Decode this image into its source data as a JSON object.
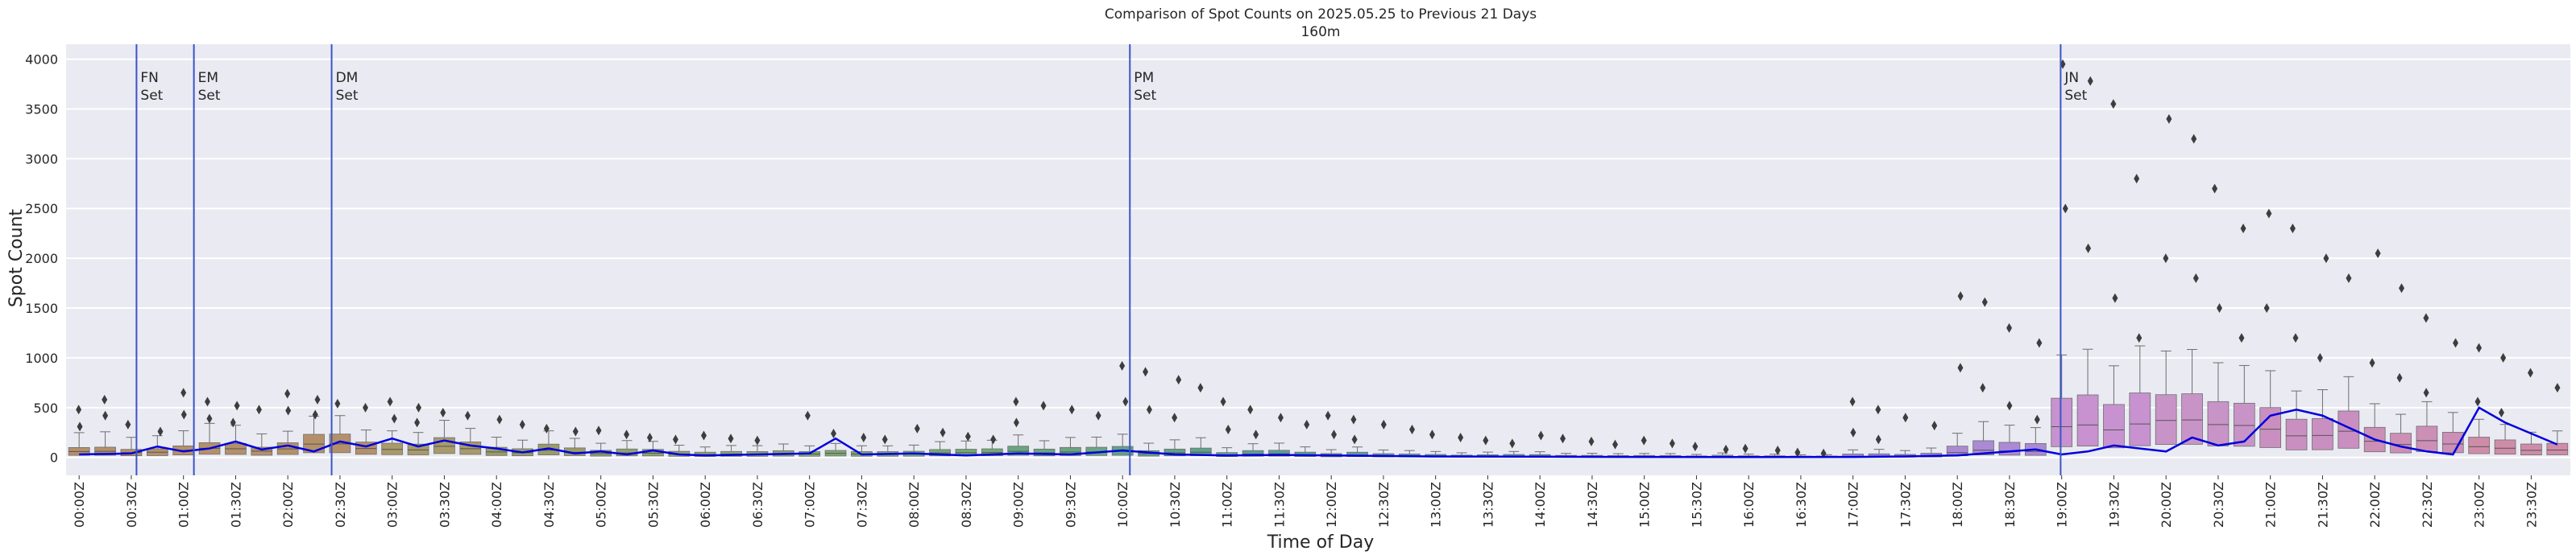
{
  "chart_data": {
    "type": "box",
    "title": "Comparison of Spot Counts on 2025.05.25 to Previous 21 Days",
    "subtitle": "160m",
    "xlabel": "Time of Day",
    "ylabel": "Spot Count",
    "ylim": [
      -180,
      4150
    ],
    "yticks": [
      0,
      500,
      1000,
      1500,
      2000,
      2500,
      3000,
      3500,
      4000
    ],
    "grid": true,
    "background": "#eaeaf2",
    "slots_per_hour": 4,
    "x_tick_labels": [
      "00:00Z",
      "00:30Z",
      "01:00Z",
      "01:30Z",
      "02:00Z",
      "02:30Z",
      "03:00Z",
      "03:30Z",
      "04:00Z",
      "04:30Z",
      "05:00Z",
      "05:30Z",
      "06:00Z",
      "06:30Z",
      "07:00Z",
      "07:30Z",
      "08:00Z",
      "08:30Z",
      "09:00Z",
      "09:30Z",
      "10:00Z",
      "10:30Z",
      "11:00Z",
      "11:30Z",
      "12:00Z",
      "12:30Z",
      "13:00Z",
      "13:30Z",
      "14:00Z",
      "14:30Z",
      "15:00Z",
      "15:30Z",
      "16:00Z",
      "16:30Z",
      "17:00Z",
      "17:30Z",
      "18:00Z",
      "18:30Z",
      "19:00Z",
      "19:30Z",
      "20:00Z",
      "20:30Z",
      "21:00Z",
      "21:30Z",
      "22:00Z",
      "22:30Z",
      "23:00Z",
      "23:30Z"
    ],
    "vertical_markers": [
      {
        "time": 0.55,
        "lines": [
          "FN",
          "Set"
        ]
      },
      {
        "time": 1.1,
        "lines": [
          "EM",
          "Set"
        ]
      },
      {
        "time": 2.42,
        "lines": [
          "DM",
          "Set"
        ]
      },
      {
        "time": 10.07,
        "lines": [
          "PM",
          "Set"
        ]
      },
      {
        "time": 18.99,
        "lines": [
          "JN",
          "Set"
        ]
      }
    ],
    "box_stats_by_hour": [
      {
        "hour": 0,
        "median": 60,
        "q3": 100,
        "whisker": 250,
        "outliers": [
          480,
          420,
          330,
          260,
          310,
          580
        ]
      },
      {
        "hour": 1,
        "median": 80,
        "q3": 130,
        "whisker": 300,
        "outliers": [
          650,
          560,
          520,
          480,
          430,
          390,
          350
        ]
      },
      {
        "hour": 2,
        "median": 110,
        "q3": 190,
        "whisker": 340,
        "outliers": [
          640,
          580,
          540,
          500,
          470,
          430
        ]
      },
      {
        "hour": 3,
        "median": 90,
        "q3": 160,
        "whisker": 300,
        "outliers": [
          560,
          500,
          450,
          420,
          390,
          350
        ]
      },
      {
        "hour": 4,
        "median": 60,
        "q3": 110,
        "whisker": 220,
        "outliers": [
          380,
          330,
          290,
          260
        ]
      },
      {
        "hour": 5,
        "median": 40,
        "q3": 75,
        "whisker": 150,
        "outliers": [
          270,
          230,
          200,
          180
        ]
      },
      {
        "hour": 6,
        "median": 30,
        "q3": 55,
        "whisker": 110,
        "outliers": [
          220,
          190,
          170
        ]
      },
      {
        "hour": 7,
        "median": 35,
        "q3": 60,
        "whisker": 120,
        "outliers": [
          420,
          240,
          200,
          180
        ]
      },
      {
        "hour": 8,
        "median": 40,
        "q3": 70,
        "whisker": 140,
        "outliers": [
          290,
          250,
          210,
          180
        ]
      },
      {
        "hour": 9,
        "median": 60,
        "q3": 110,
        "whisker": 220,
        "outliers": [
          560,
          520,
          480,
          420,
          350
        ]
      },
      {
        "hour": 10,
        "median": 50,
        "q3": 90,
        "whisker": 190,
        "outliers": [
          920,
          860,
          780,
          700,
          560,
          480,
          400
        ]
      },
      {
        "hour": 11,
        "median": 30,
        "q3": 60,
        "whisker": 120,
        "outliers": [
          560,
          480,
          400,
          330,
          280,
          230
        ]
      },
      {
        "hour": 12,
        "median": 20,
        "q3": 45,
        "whisker": 90,
        "outliers": [
          420,
          380,
          330,
          280,
          230,
          180
        ]
      },
      {
        "hour": 13,
        "median": 12,
        "q3": 30,
        "whisker": 60,
        "outliers": [
          230,
          200,
          170,
          140
        ]
      },
      {
        "hour": 14,
        "median": 10,
        "q3": 25,
        "whisker": 50,
        "outliers": [
          220,
          190,
          160,
          130
        ]
      },
      {
        "hour": 15,
        "median": 8,
        "q3": 20,
        "whisker": 40,
        "outliers": [
          170,
          140,
          110,
          80
        ]
      },
      {
        "hour": 16,
        "median": 6,
        "q3": 15,
        "whisker": 30,
        "outliers": [
          90,
          70,
          50,
          40
        ]
      },
      {
        "hour": 17,
        "median": 12,
        "q3": 40,
        "whisker": 90,
        "outliers": [
          560,
          480,
          400,
          320,
          250,
          180
        ]
      },
      {
        "hour": 18,
        "median": 60,
        "q3": 140,
        "whisker": 300,
        "outliers": [
          1620,
          1560,
          1300,
          1150,
          900,
          700,
          520,
          380
        ]
      },
      {
        "hour": 19,
        "median": 270,
        "q3": 520,
        "whisker": 900,
        "outliers": [
          3950,
          3780,
          3550,
          2800,
          2500,
          2100,
          1600,
          1200
        ]
      },
      {
        "hour": 20,
        "median": 330,
        "q3": 560,
        "whisker": 950,
        "outliers": [
          3400,
          3200,
          2700,
          2300,
          2000,
          1800,
          1500,
          1200
        ]
      },
      {
        "hour": 21,
        "median": 260,
        "q3": 460,
        "whisker": 800,
        "outliers": [
          2450,
          2300,
          2000,
          1800,
          1500,
          1200,
          1000
        ]
      },
      {
        "hour": 22,
        "median": 150,
        "q3": 280,
        "whisker": 500,
        "outliers": [
          2050,
          1700,
          1400,
          1150,
          950,
          800,
          650
        ]
      },
      {
        "hour": 23,
        "median": 90,
        "q3": 170,
        "whisker": 320,
        "outliers": [
          1100,
          1000,
          850,
          700,
          560,
          450
        ]
      }
    ],
    "box_colors_by_hour": [
      "#b4906a",
      "#b4906a",
      "#b4906a",
      "#a89a6a",
      "#9a9c68",
      "#8fa16c",
      "#8ba470",
      "#7ea872",
      "#74a978",
      "#67a67f",
      "#5fa38a",
      "#5c9f96",
      "#5e9aa3",
      "#6596b0",
      "#6f92bc",
      "#7c8fc6",
      "#8a8ccd",
      "#9a8ad2",
      "#ab8ad4",
      "#c792cf",
      "#c894c8",
      "#c98fc0",
      "#cc8fb6",
      "#cf8ca8"
    ],
    "current_day_series": {
      "color": "#0000dd",
      "points": [
        [
          0.0,
          30
        ],
        [
          0.5,
          40
        ],
        [
          0.75,
          110
        ],
        [
          1.0,
          60
        ],
        [
          1.25,
          90
        ],
        [
          1.5,
          160
        ],
        [
          1.75,
          80
        ],
        [
          2.0,
          120
        ],
        [
          2.25,
          60
        ],
        [
          2.5,
          160
        ],
        [
          2.75,
          110
        ],
        [
          3.0,
          190
        ],
        [
          3.25,
          110
        ],
        [
          3.5,
          170
        ],
        [
          3.75,
          120
        ],
        [
          4.0,
          90
        ],
        [
          4.25,
          50
        ],
        [
          4.5,
          90
        ],
        [
          4.75,
          40
        ],
        [
          5.0,
          60
        ],
        [
          5.25,
          30
        ],
        [
          5.5,
          70
        ],
        [
          5.75,
          30
        ],
        [
          6.0,
          20
        ],
        [
          6.5,
          30
        ],
        [
          7.0,
          40
        ],
        [
          7.25,
          190
        ],
        [
          7.5,
          30
        ],
        [
          8.0,
          40
        ],
        [
          8.5,
          20
        ],
        [
          9.0,
          40
        ],
        [
          9.5,
          30
        ],
        [
          10.0,
          70
        ],
        [
          10.5,
          30
        ],
        [
          11.0,
          20
        ],
        [
          11.5,
          25
        ],
        [
          12.0,
          20
        ],
        [
          12.5,
          15
        ],
        [
          13.0,
          10
        ],
        [
          14.0,
          8
        ],
        [
          14.5,
          6
        ],
        [
          15.0,
          5
        ],
        [
          16.0,
          4
        ],
        [
          17.0,
          5
        ],
        [
          17.5,
          10
        ],
        [
          18.0,
          20
        ],
        [
          18.5,
          60
        ],
        [
          18.75,
          80
        ],
        [
          19.0,
          30
        ],
        [
          19.25,
          60
        ],
        [
          19.5,
          120
        ],
        [
          19.75,
          90
        ],
        [
          20.0,
          60
        ],
        [
          20.25,
          200
        ],
        [
          20.5,
          120
        ],
        [
          20.75,
          160
        ],
        [
          21.0,
          420
        ],
        [
          21.25,
          480
        ],
        [
          21.5,
          420
        ],
        [
          21.75,
          300
        ],
        [
          22.0,
          180
        ],
        [
          22.25,
          110
        ],
        [
          22.5,
          60
        ],
        [
          22.75,
          30
        ],
        [
          23.0,
          500
        ],
        [
          23.25,
          350
        ],
        [
          23.5,
          240
        ],
        [
          23.75,
          130
        ]
      ]
    }
  }
}
